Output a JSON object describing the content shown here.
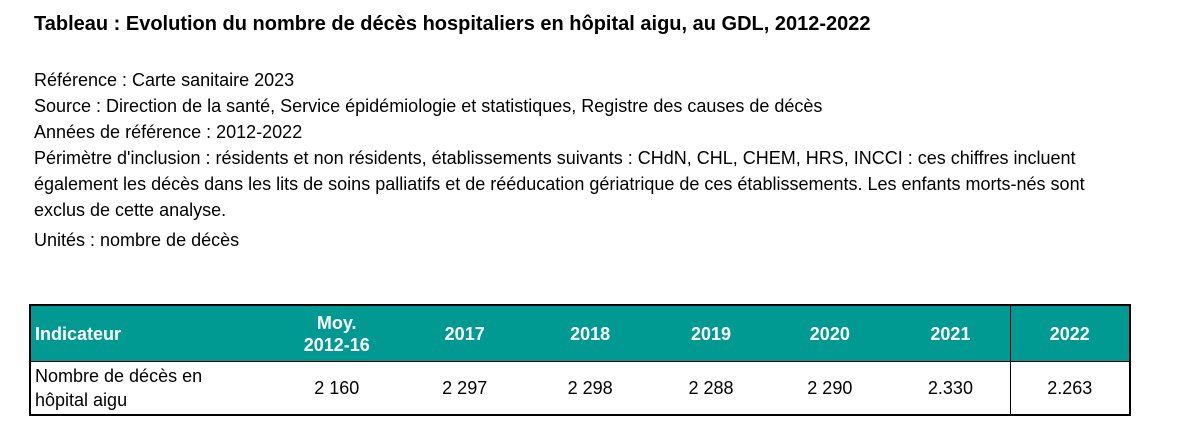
{
  "title": "Tableau : Evolution du nombre de décès hospitaliers en hôpital aigu, au GDL, 2012-2022",
  "meta": {
    "reference": "Référence : Carte sanitaire 2023",
    "source": "Source : Direction de la santé, Service épidémiologie et statistiques, Registre des causes de décès",
    "years": "Années de référence : 2012-2022",
    "scope": "Périmètre d'inclusion : résidents et non résidents, établissements suivants : CHdN, CHL, CHEM, HRS, INCCI : ces chiffres incluent également les décès dans les lits de soins palliatifs et de rééducation gériatrique de ces établissements. Les enfants morts-nés sont exclus de cette analyse.",
    "units": "Unités : nombre de décès"
  },
  "colors": {
    "header_bg": "#009a93",
    "header_text": "#ffffff"
  },
  "table": {
    "headers": {
      "indicator": "Indicateur",
      "avg_line1": "Moy.",
      "avg_line2": "2012-16",
      "y2017": "2017",
      "y2018": "2018",
      "y2019": "2019",
      "y2020": "2020",
      "y2021": "2021",
      "y2022": "2022"
    },
    "row": {
      "label_line1": "Nombre de décès en",
      "label_line2": "hôpital aigu",
      "avg": "2 160",
      "y2017": "2 297",
      "y2018": "2 298",
      "y2019": "2 288",
      "y2020": "2 290",
      "y2021": "2.330",
      "y2022": "2.263"
    }
  }
}
